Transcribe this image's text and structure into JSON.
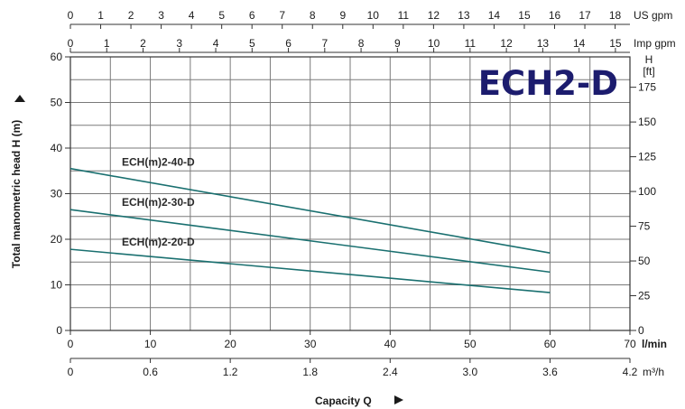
{
  "chart_data": {
    "type": "line",
    "title": "ECH2-D",
    "colors": {
      "curve": "#1a7070",
      "grid": "#7a7a7a",
      "title": "#1c1c6e"
    },
    "x": {
      "values": [
        0,
        60
      ],
      "unit": "l/min",
      "label": "l/min",
      "lim": [
        0,
        70
      ],
      "ticks": [
        "0",
        "10",
        "20",
        "30",
        "40",
        "50",
        "60",
        "70"
      ]
    },
    "y": {
      "label": "Total manometric head H (m)",
      "lim": [
        0,
        60
      ],
      "ticks": [
        "0",
        "10",
        "20",
        "30",
        "40",
        "50",
        "60"
      ]
    },
    "series": [
      {
        "name": "ECH(m)2-40-D",
        "x": [
          0,
          60
        ],
        "y": [
          35.5,
          17
        ]
      },
      {
        "name": "ECH(m)2-30-D",
        "x": [
          0,
          60
        ],
        "y": [
          26.5,
          12.8
        ]
      },
      {
        "name": "ECH(m)2-20-D",
        "x": [
          0,
          60
        ],
        "y": [
          17.8,
          8.3
        ]
      }
    ],
    "secondary_axes": {
      "us_gpm": {
        "label": "US gpm",
        "lim": [
          0,
          18.49
        ],
        "ticks": [
          "0",
          "1",
          "2",
          "3",
          "4",
          "5",
          "6",
          "7",
          "8",
          "9",
          "10",
          "11",
          "12",
          "13",
          "14",
          "15",
          "16",
          "17",
          "18"
        ]
      },
      "imp_gpm": {
        "label": "Imp gpm",
        "lim": [
          0,
          15.4
        ],
        "ticks": [
          "0",
          "1",
          "2",
          "3",
          "4",
          "5",
          "6",
          "7",
          "8",
          "9",
          "10",
          "11",
          "12",
          "13",
          "14",
          "15"
        ]
      },
      "m3h": {
        "label": "m³/h",
        "lim": [
          0,
          4.2
        ],
        "ticks": [
          "0",
          "0.6",
          "1.2",
          "1.8",
          "2.4",
          "3.0",
          "3.6",
          "4.2"
        ]
      },
      "h_ft": {
        "label_top": "H",
        "label_bottom": "[ft]",
        "lim": [
          0,
          196.85
        ],
        "ticks": [
          "0",
          "25",
          "50",
          "75",
          "100",
          "125",
          "150",
          "175"
        ]
      }
    },
    "capacity_label": "Capacity Q",
    "grid": true
  }
}
